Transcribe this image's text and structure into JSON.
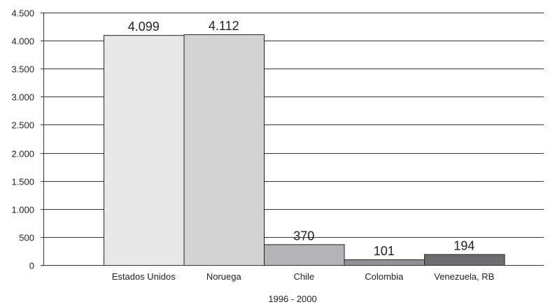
{
  "chart_data": {
    "type": "bar",
    "categories": [
      "Estados Unidos",
      "Noruega",
      "Chile",
      "Colombia",
      "Venezuela, RB"
    ],
    "values": [
      4099,
      4112,
      370,
      101,
      194
    ],
    "value_labels": [
      "4.099",
      "4.112",
      "370",
      "101",
      "194"
    ],
    "bar_colors": [
      "#e6e7e8",
      "#d2d3d5",
      "#b2b4b7",
      "#8f9194",
      "#6b6d70"
    ],
    "ylim": [
      0,
      4500
    ],
    "yticks": [
      0,
      500,
      1000,
      1500,
      2000,
      2500,
      3000,
      3500,
      4000,
      4500
    ],
    "ytick_labels": [
      "0",
      "500",
      "1.000",
      "1.500",
      "2.000",
      "2.500",
      "3.000",
      "3.500",
      "4.000",
      "4.500"
    ],
    "xlabel": "1996 - 2000",
    "grid": true
  }
}
